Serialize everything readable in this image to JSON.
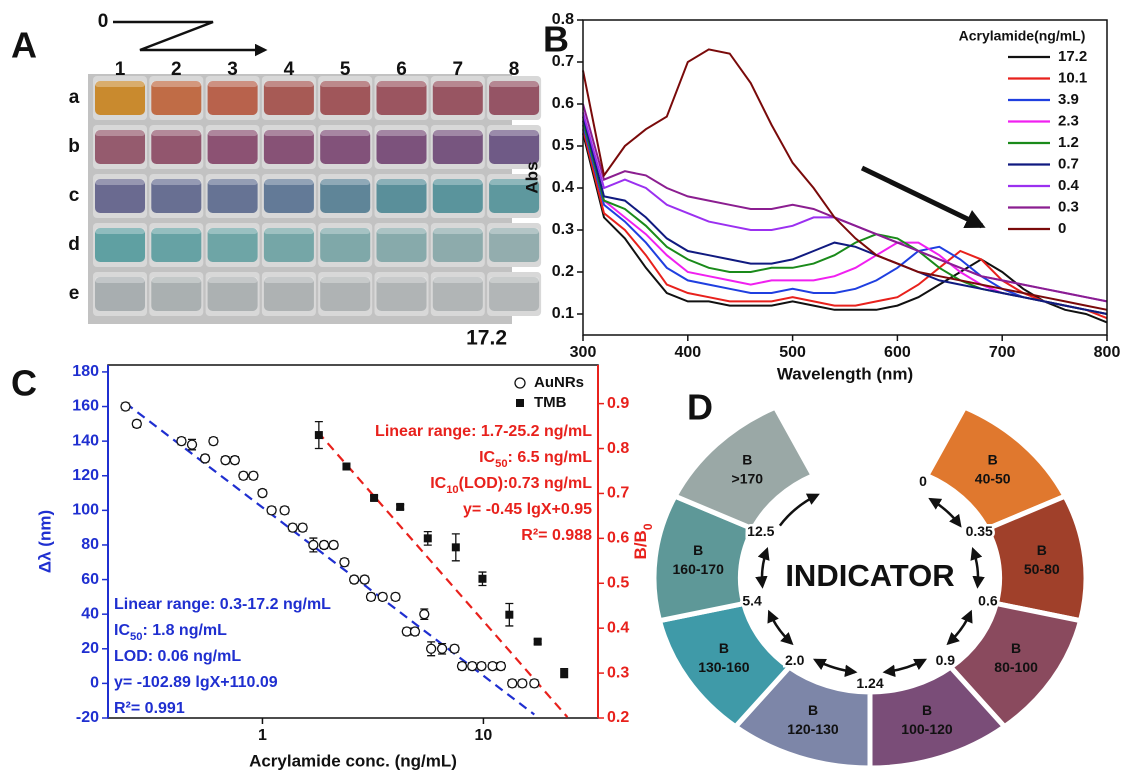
{
  "photo": {
    "panel": "A",
    "start": "0",
    "columns": [
      "1",
      "2",
      "3",
      "4",
      "5",
      "6",
      "7",
      "8"
    ],
    "rows": [
      "a",
      "b",
      "c",
      "d",
      "e"
    ],
    "end_label": "17.2",
    "vial_colors": [
      [
        "#c98a2e",
        "#c06c46",
        "#b8624c",
        "#a75a55",
        "#a0565a",
        "#9b5560",
        "#985562",
        "#955465"
      ],
      [
        "#955b6e",
        "#92566e",
        "#8c5273",
        "#875276",
        "#82527a",
        "#7c527c",
        "#77557f",
        "#6f5a86"
      ],
      [
        "#6a6a90",
        "#686f92",
        "#667394",
        "#637a97",
        "#5f8598",
        "#5a8f9a",
        "#5a949c",
        "#5e989e"
      ],
      [
        "#5fa0a2",
        "#66a2a4",
        "#6ea5a6",
        "#75a6a7",
        "#7fa8a9",
        "#87aaab",
        "#8dabac",
        "#93adae"
      ],
      [
        "#a8aeb0",
        "#aab0b1",
        "#acb1b2",
        "#aeb2b3",
        "#afb3b4",
        "#b0b4b5",
        "#b1b5b6",
        "#b2b6b7"
      ]
    ]
  },
  "chart_data": [
    {
      "type": "line",
      "panel": "B",
      "xlabel": "Wavelength (nm)",
      "ylabel": "Abs",
      "legend_title": "Acrylamide(ng/mL)",
      "xlim": [
        300,
        800
      ],
      "xticks": [
        300,
        400,
        500,
        600,
        700,
        800
      ],
      "ylim": [
        0.05,
        0.8
      ],
      "yticks": [
        0.1,
        0.2,
        0.3,
        0.4,
        0.5,
        0.6,
        0.7,
        0.8
      ],
      "x": [
        300,
        320,
        340,
        360,
        380,
        400,
        420,
        440,
        460,
        480,
        500,
        520,
        540,
        560,
        580,
        600,
        620,
        640,
        660,
        680,
        700,
        720,
        740,
        760,
        780,
        800
      ],
      "series": [
        {
          "name": "17.2",
          "color": "#111111",
          "values": [
            0.53,
            0.33,
            0.28,
            0.21,
            0.15,
            0.13,
            0.13,
            0.12,
            0.12,
            0.12,
            0.13,
            0.12,
            0.11,
            0.11,
            0.11,
            0.12,
            0.14,
            0.17,
            0.2,
            0.23,
            0.2,
            0.16,
            0.13,
            0.11,
            0.1,
            0.08
          ]
        },
        {
          "name": "10.1",
          "color": "#e8211c",
          "values": [
            0.54,
            0.34,
            0.3,
            0.24,
            0.17,
            0.15,
            0.14,
            0.13,
            0.13,
            0.13,
            0.14,
            0.13,
            0.12,
            0.12,
            0.13,
            0.14,
            0.17,
            0.21,
            0.25,
            0.23,
            0.18,
            0.15,
            0.13,
            0.12,
            0.11,
            0.09
          ]
        },
        {
          "name": "3.9",
          "color": "#1f3fe0",
          "values": [
            0.55,
            0.36,
            0.32,
            0.27,
            0.21,
            0.18,
            0.17,
            0.16,
            0.15,
            0.15,
            0.16,
            0.15,
            0.15,
            0.16,
            0.18,
            0.21,
            0.25,
            0.26,
            0.23,
            0.19,
            0.16,
            0.14,
            0.13,
            0.12,
            0.11,
            0.1
          ]
        },
        {
          "name": "2.3",
          "color": "#f020f0",
          "values": [
            0.56,
            0.37,
            0.33,
            0.29,
            0.24,
            0.2,
            0.19,
            0.18,
            0.17,
            0.18,
            0.18,
            0.18,
            0.19,
            0.21,
            0.24,
            0.27,
            0.27,
            0.24,
            0.2,
            0.17,
            0.15,
            0.14,
            0.13,
            0.12,
            0.11,
            0.1
          ]
        },
        {
          "name": "1.2",
          "color": "#1a8a1a",
          "values": [
            0.56,
            0.37,
            0.35,
            0.31,
            0.26,
            0.23,
            0.21,
            0.2,
            0.2,
            0.21,
            0.21,
            0.22,
            0.24,
            0.27,
            0.29,
            0.28,
            0.25,
            0.21,
            0.18,
            0.16,
            0.15,
            0.14,
            0.13,
            0.12,
            0.11,
            0.1
          ]
        },
        {
          "name": "0.7",
          "color": "#101a80",
          "values": [
            0.57,
            0.38,
            0.37,
            0.33,
            0.28,
            0.25,
            0.24,
            0.23,
            0.22,
            0.22,
            0.23,
            0.25,
            0.27,
            0.26,
            0.24,
            0.22,
            0.2,
            0.18,
            0.17,
            0.16,
            0.15,
            0.14,
            0.13,
            0.12,
            0.11,
            0.1
          ]
        },
        {
          "name": "0.4",
          "color": "#9b30f0",
          "values": [
            0.58,
            0.4,
            0.42,
            0.4,
            0.36,
            0.34,
            0.32,
            0.31,
            0.3,
            0.3,
            0.31,
            0.33,
            0.33,
            0.31,
            0.29,
            0.27,
            0.25,
            0.23,
            0.21,
            0.19,
            0.18,
            0.17,
            0.16,
            0.15,
            0.14,
            0.13
          ]
        },
        {
          "name": "0.3",
          "color": "#8b1e90",
          "values": [
            0.6,
            0.42,
            0.44,
            0.43,
            0.4,
            0.38,
            0.37,
            0.36,
            0.35,
            0.35,
            0.36,
            0.35,
            0.33,
            0.31,
            0.29,
            0.27,
            0.25,
            0.23,
            0.21,
            0.19,
            0.18,
            0.17,
            0.16,
            0.15,
            0.14,
            0.13
          ]
        },
        {
          "name": "0",
          "color": "#7a0a0a",
          "values": [
            0.68,
            0.43,
            0.5,
            0.54,
            0.57,
            0.7,
            0.73,
            0.72,
            0.65,
            0.55,
            0.46,
            0.4,
            0.33,
            0.28,
            0.24,
            0.22,
            0.2,
            0.19,
            0.18,
            0.17,
            0.16,
            0.15,
            0.14,
            0.13,
            0.12,
            0.11
          ]
        }
      ]
    },
    {
      "type": "scatter",
      "panel": "C",
      "xlabel": "Acrylamide conc. (ng/mL)",
      "ylabel": "Δλ (nm)",
      "y2label": [
        "B/B",
        "0"
      ],
      "ylabel_color": "#1f2fd0",
      "y2label_color": "#e8211c",
      "log_x": true,
      "xlim": [
        0.2,
        33
      ],
      "xticks": [
        1,
        10
      ],
      "ylim": [
        -20,
        184
      ],
      "yticks": [
        -20,
        0,
        20,
        40,
        60,
        80,
        100,
        120,
        140,
        160,
        180
      ],
      "y2lim": [
        0.2,
        0.986
      ],
      "y2ticks": [
        0.2,
        0.3,
        0.4,
        0.5,
        0.6,
        0.7,
        0.8,
        0.9
      ],
      "series": [
        {
          "name": "AuNRs",
          "marker": "circle",
          "color": "#111111",
          "x": [
            0.24,
            0.27,
            0.43,
            0.48,
            0.55,
            0.6,
            0.68,
            0.75,
            0.82,
            0.91,
            1.0,
            1.1,
            1.26,
            1.37,
            1.52,
            1.7,
            1.9,
            2.1,
            2.35,
            2.6,
            2.9,
            3.1,
            3.5,
            4.0,
            4.5,
            4.9,
            5.4,
            5.8,
            6.5,
            7.4,
            8.0,
            8.9,
            9.8,
            11,
            12,
            13.5,
            15,
            17
          ],
          "values": [
            160,
            150,
            140,
            138,
            130,
            140,
            129,
            129,
            120,
            120,
            110,
            100,
            100,
            90,
            90,
            80,
            80,
            80,
            70,
            60,
            60,
            50,
            50,
            50,
            30,
            30,
            40,
            20,
            20,
            20,
            10,
            10,
            10,
            10,
            10,
            0,
            0,
            0
          ],
          "errors": [
            2,
            2,
            2,
            3,
            2,
            2,
            2,
            2,
            2,
            2,
            2,
            2,
            2,
            2,
            2,
            4,
            2,
            2,
            2,
            2,
            2,
            2,
            2,
            2,
            2,
            2,
            3,
            4,
            3,
            2,
            2,
            2,
            2,
            2,
            2,
            2,
            2,
            2
          ]
        },
        {
          "name": "TMB",
          "marker": "square",
          "color": "#111111",
          "axis": "y2",
          "x": [
            1.8,
            2.4,
            3.2,
            4.2,
            5.6,
            7.5,
            9.9,
            13.1,
            17.6,
            23.2
          ],
          "values": [
            0.83,
            0.76,
            0.69,
            0.67,
            0.6,
            0.58,
            0.51,
            0.43,
            0.37,
            0.3
          ],
          "errors": [
            0.03,
            0.005,
            0.005,
            0.005,
            0.015,
            0.03,
            0.015,
            0.025,
            0.005,
            0.01
          ]
        }
      ],
      "fits": [
        {
          "color": "#1f2fd0",
          "x": [
            0.24,
            17
          ],
          "values": [
            162,
            -18
          ]
        },
        {
          "color": "#e8211c",
          "axis": "y2",
          "x": [
            1.78,
            24
          ],
          "values": [
            0.837,
            0.202
          ]
        }
      ],
      "annotations": [
        {
          "color": "#1f2fd0",
          "anchor": "start",
          "lines": [
            [
              "Linear range: 0.3-17.2 ng/mL"
            ],
            [
              "IC",
              "50",
              ": 1.8 ng/mL"
            ],
            [
              "LOD: 0.06 ng/mL"
            ],
            [
              "y= -102.89 lgX+110.09"
            ],
            [
              "R²= 0.991"
            ]
          ]
        },
        {
          "color": "#e8211c",
          "anchor": "end",
          "lines": [
            [
              "Linear range: 1.7-25.2 ng/mL"
            ],
            [
              "IC",
              "50",
              ": 6.5 ng/mL"
            ],
            [
              "IC",
              "10",
              "(LOD):0.73 ng/mL"
            ],
            [
              "y= -0.45 lgX+0.95"
            ],
            [
              "R²= 0.988"
            ]
          ]
        }
      ]
    }
  ],
  "diagram": {
    "panel": "D",
    "center": "INDICATOR",
    "segments": [
      {
        "letter": "B",
        "range": "40-50",
        "color": "#e0782e"
      },
      {
        "letter": "B",
        "range": "50-80",
        "color": "#a0402a"
      },
      {
        "letter": "B",
        "range": "80-100",
        "color": "#8a4a5e"
      },
      {
        "letter": "B",
        "range": "100-120",
        "color": "#7a4d78"
      },
      {
        "letter": "B",
        "range": "120-130",
        "color": "#7d86a8"
      },
      {
        "letter": "B",
        "range": "130-160",
        "color": "#3f9aa8"
      },
      {
        "letter": "B",
        "range": "160-170",
        "color": "#5e9898"
      },
      {
        "letter": "B",
        "range": ">170",
        "color": "#9aa8a6"
      }
    ],
    "scale": [
      "0",
      "0.35",
      "0.6",
      "0.9",
      "1.24",
      "2.0",
      "5.4",
      "12.5"
    ]
  }
}
